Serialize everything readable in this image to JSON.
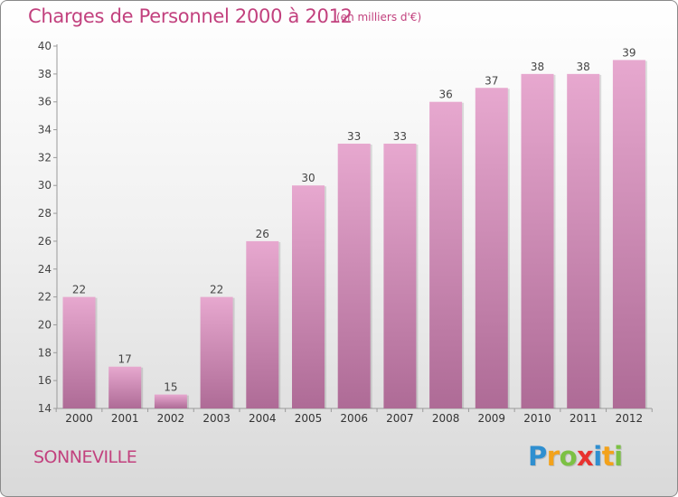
{
  "header": {
    "title": "Charges de Personnel 2000 à 2012",
    "unit_note": "(en milliers d'€)"
  },
  "footer": {
    "place": "SONNEVILLE",
    "logo_text": "Proxiti",
    "logo_letters": [
      {
        "ch": "P",
        "color": "#2f8fd0"
      },
      {
        "ch": "r",
        "color": "#f3a21b"
      },
      {
        "ch": "o",
        "color": "#7cc144"
      },
      {
        "ch": "x",
        "color": "#e8322f"
      },
      {
        "ch": "i",
        "color": "#2f8fd0"
      },
      {
        "ch": "t",
        "color": "#f3a21b"
      },
      {
        "ch": "i",
        "color": "#7cc144"
      }
    ]
  },
  "colors": {
    "accent_text": "#c2417e",
    "bar_top": "#e7a8cf",
    "bar_bottom": "#ae6b96"
  },
  "chart_data": {
    "type": "bar",
    "title": "Charges de Personnel 2000 à 2012",
    "subtitle": "(en milliers d'€)",
    "xlabel": "",
    "ylabel": "",
    "categories": [
      "2000",
      "2001",
      "2002",
      "2003",
      "2004",
      "2005",
      "2006",
      "2007",
      "2008",
      "2009",
      "2010",
      "2011",
      "2012"
    ],
    "values": [
      22,
      17,
      15,
      22,
      26,
      30,
      33,
      33,
      36,
      37,
      38,
      38,
      39
    ],
    "ylim": [
      14,
      40
    ],
    "yticks": [
      14,
      16,
      18,
      20,
      22,
      24,
      26,
      28,
      30,
      32,
      34,
      36,
      38,
      40
    ],
    "grid": false,
    "data_labels": true
  }
}
